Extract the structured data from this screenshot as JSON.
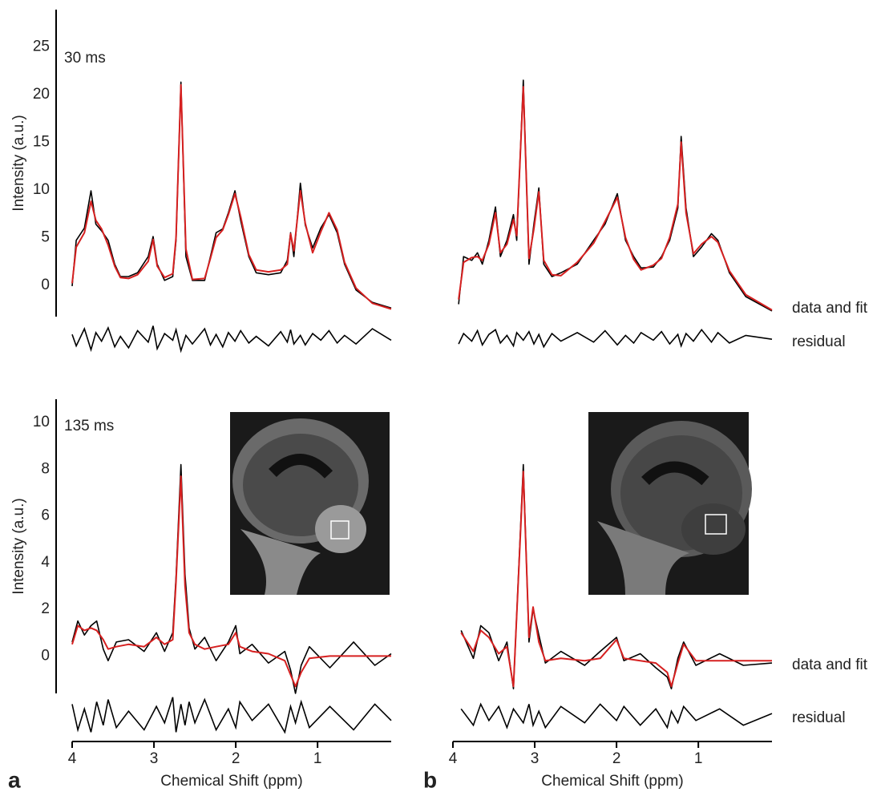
{
  "chart_data": [
    {
      "type": "line",
      "annotation": "30 ms",
      "ylabel": "Intensity (a.u.)",
      "xlim": [
        4,
        0.1
      ],
      "ylim": [
        -3.3,
        28.9
      ],
      "yticks": [
        0,
        5,
        10,
        15,
        20,
        25
      ],
      "x": [
        4.0,
        3.95,
        3.85,
        3.77,
        3.71,
        3.64,
        3.56,
        3.48,
        3.41,
        3.31,
        3.2,
        3.07,
        3.01,
        2.96,
        2.87,
        2.77,
        2.73,
        2.67,
        2.61,
        2.53,
        2.38,
        2.31,
        2.24,
        2.16,
        2.09,
        2.01,
        1.94,
        1.84,
        1.75,
        1.6,
        1.45,
        1.37,
        1.33,
        1.29,
        1.21,
        1.15,
        1.06,
        0.96,
        0.86,
        0.76,
        0.67,
        0.53,
        0.33,
        0.1
      ],
      "series": [
        {
          "color": "#000000",
          "values": [
            -0.1,
            4.7,
            6.0,
            9.9,
            6.4,
            5.7,
            4.7,
            2.2,
            0.9,
            0.9,
            1.3,
            3.0,
            5.1,
            2.2,
            0.5,
            0.9,
            4.7,
            21.3,
            3.0,
            0.5,
            0.5,
            3.0,
            5.5,
            5.9,
            7.6,
            9.9,
            6.8,
            3.0,
            1.3,
            1.1,
            1.3,
            2.6,
            5.5,
            3.0,
            10.7,
            6.3,
            3.9,
            6.0,
            7.4,
            5.5,
            2.2,
            -0.5,
            -1.8,
            -2.4
          ]
        },
        {
          "color": "#d62020",
          "values": [
            0.2,
            4.0,
            5.5,
            8.8,
            6.8,
            5.9,
            4.2,
            2.0,
            0.8,
            0.7,
            1.1,
            2.5,
            4.8,
            2.0,
            0.8,
            1.2,
            5.0,
            21.0,
            3.8,
            0.6,
            0.7,
            2.8,
            5.0,
            5.8,
            7.4,
            9.6,
            7.2,
            3.2,
            1.6,
            1.4,
            1.6,
            2.2,
            5.4,
            3.6,
            9.9,
            6.5,
            3.4,
            5.6,
            7.6,
            5.8,
            2.4,
            -0.3,
            -1.9,
            -2.5
          ]
        }
      ],
      "residual": {
        "color": "#000000",
        "values": [
          0.4,
          -0.8,
          1.0,
          -1.2,
          0.6,
          -0.3,
          1.1,
          -0.9,
          0.2,
          -1.0,
          0.8,
          -0.4,
          1.3,
          -1.1,
          0.5,
          -0.2,
          0.9,
          -1.3,
          0.3,
          -0.6,
          1.0,
          -0.7,
          0.4,
          -0.9,
          0.6,
          -0.3,
          0.8,
          -0.5,
          0.2,
          -0.8,
          0.7,
          -0.4,
          0.9,
          -0.6,
          0.3,
          -0.7,
          0.5,
          -0.2,
          0.8,
          -0.5,
          0.3,
          -0.6,
          1.0,
          -0.2
        ]
      }
    },
    {
      "type": "line",
      "labels": [
        "data and fit",
        "residual"
      ],
      "xlim": [
        4,
        0.1
      ],
      "ylim": [
        -3.3,
        28.9
      ],
      "x": [
        3.93,
        3.87,
        3.77,
        3.7,
        3.64,
        3.56,
        3.48,
        3.42,
        3.34,
        3.26,
        3.22,
        3.14,
        3.07,
        3.01,
        2.95,
        2.89,
        2.79,
        2.68,
        2.48,
        2.28,
        2.14,
        1.99,
        1.89,
        1.79,
        1.7,
        1.55,
        1.45,
        1.35,
        1.25,
        1.21,
        1.15,
        1.06,
        0.96,
        0.84,
        0.76,
        0.62,
        0.42,
        0.1
      ],
      "series": [
        {
          "color": "#000000",
          "values": [
            -2.0,
            3.0,
            2.6,
            3.4,
            2.2,
            4.7,
            8.2,
            3.0,
            4.7,
            7.4,
            4.7,
            21.5,
            2.2,
            6.4,
            10.2,
            2.2,
            0.9,
            1.3,
            2.2,
            4.7,
            6.4,
            9.6,
            4.7,
            3.0,
            1.8,
            1.9,
            3.0,
            4.7,
            8.1,
            15.6,
            8.1,
            3.0,
            4.0,
            5.4,
            4.7,
            1.3,
            -1.2,
            -2.7
          ]
        },
        {
          "color": "#d62020",
          "values": [
            -1.5,
            2.4,
            2.9,
            3.0,
            2.6,
            4.3,
            7.6,
            3.4,
            4.3,
            6.9,
            5.2,
            20.8,
            2.8,
            5.9,
            9.8,
            2.6,
            1.1,
            1.0,
            2.4,
            4.4,
            6.7,
            9.2,
            5.0,
            2.7,
            1.6,
            2.1,
            2.8,
            5.0,
            8.5,
            15.0,
            7.6,
            3.3,
            4.3,
            5.1,
            4.5,
            1.5,
            -1.0,
            -2.6
          ]
        }
      ],
      "residual": {
        "color": "#000000",
        "values": [
          -0.6,
          0.5,
          -0.3,
          0.8,
          -0.7,
          0.4,
          0.9,
          -0.5,
          0.3,
          -0.8,
          0.6,
          -0.2,
          0.7,
          -0.6,
          0.4,
          -0.9,
          0.5,
          -0.3,
          0.6,
          -0.4,
          0.8,
          -0.7,
          0.3,
          -0.5,
          0.6,
          -0.2,
          0.7,
          -0.6,
          0.4,
          -0.8,
          0.5,
          -0.3,
          0.9,
          -0.4,
          0.6,
          -0.5,
          0.3,
          -0.1
        ]
      }
    },
    {
      "type": "line",
      "annotation": "135 ms",
      "ylabel": "Intensity (a.u.)",
      "xlabel": "Chemical Shift (ppm)",
      "panel": "a",
      "xlim": [
        4,
        0.1
      ],
      "xticks": [
        4,
        3,
        2,
        1
      ],
      "ylim": [
        -1.6,
        11.0
      ],
      "yticks": [
        0,
        2,
        4,
        6,
        8,
        10
      ],
      "x": [
        4.0,
        3.93,
        3.85,
        3.77,
        3.7,
        3.62,
        3.56,
        3.46,
        3.31,
        3.12,
        2.97,
        2.87,
        2.77,
        2.73,
        2.67,
        2.62,
        2.57,
        2.5,
        2.38,
        2.24,
        2.09,
        2.0,
        1.95,
        1.8,
        1.6,
        1.4,
        1.33,
        1.27,
        1.2,
        1.1,
        0.85,
        0.56,
        0.3,
        0.1
      ],
      "series": [
        {
          "color": "#000000",
          "values": [
            0.6,
            1.5,
            0.9,
            1.3,
            1.5,
            0.3,
            -0.2,
            0.6,
            0.7,
            0.2,
            1.0,
            0.2,
            1.0,
            3.4,
            8.2,
            3.5,
            1.2,
            0.3,
            0.8,
            -0.2,
            0.6,
            1.3,
            0.1,
            0.5,
            -0.3,
            0.2,
            -0.6,
            -1.6,
            -0.4,
            0.4,
            -0.5,
            0.6,
            -0.4,
            0.1
          ]
        },
        {
          "color": "#d62020",
          "values": [
            0.5,
            1.3,
            1.1,
            1.2,
            1.1,
            0.7,
            0.3,
            0.4,
            0.5,
            0.4,
            0.8,
            0.5,
            0.7,
            3.2,
            7.7,
            3.0,
            1.0,
            0.5,
            0.3,
            0.4,
            0.5,
            1.0,
            0.4,
            0.2,
            0.1,
            -0.2,
            -0.8,
            -1.3,
            -0.7,
            -0.1,
            0.0,
            0.0,
            0.0,
            0.0
          ]
        }
      ],
      "residual": {
        "color": "#000000",
        "values": [
          0.5,
          -0.6,
          0.3,
          -0.7,
          0.6,
          -0.4,
          0.7,
          -0.5,
          0.2,
          -0.6,
          0.4,
          -0.3,
          0.8,
          -0.7,
          0.5,
          -0.4,
          0.6,
          -0.3,
          0.7,
          -0.6,
          0.3,
          -0.5,
          0.6,
          -0.2,
          0.5,
          -0.7,
          0.4,
          -0.3,
          0.6,
          -0.5,
          0.4,
          -0.6,
          0.5,
          -0.2
        ]
      }
    },
    {
      "type": "line",
      "labels": [
        "data and fit",
        "residual"
      ],
      "xlabel": "Chemical Shift (ppm)",
      "panel": "b",
      "xlim": [
        4,
        0.1
      ],
      "xticks": [
        4,
        3,
        2,
        1
      ],
      "ylim": [
        -1.6,
        11.0
      ],
      "x": [
        3.9,
        3.75,
        3.66,
        3.56,
        3.44,
        3.34,
        3.26,
        3.14,
        3.07,
        3.02,
        2.95,
        2.87,
        2.68,
        2.39,
        2.2,
        2.0,
        1.91,
        1.71,
        1.52,
        1.38,
        1.33,
        1.25,
        1.18,
        1.03,
        0.74,
        0.45,
        0.1
      ],
      "series": [
        {
          "color": "#000000",
          "values": [
            1.1,
            -0.1,
            1.3,
            1.0,
            -0.2,
            0.6,
            -1.4,
            8.2,
            0.6,
            2.0,
            0.9,
            -0.3,
            0.2,
            -0.4,
            0.2,
            0.8,
            -0.2,
            0.1,
            -0.5,
            -0.9,
            -1.4,
            -0.1,
            0.6,
            -0.4,
            0.1,
            -0.4,
            -0.3
          ]
        },
        {
          "color": "#d62020",
          "values": [
            1.0,
            0.2,
            1.1,
            0.8,
            0.1,
            0.4,
            -1.3,
            7.9,
            0.8,
            2.1,
            0.6,
            -0.2,
            -0.1,
            -0.2,
            -0.1,
            0.7,
            -0.1,
            -0.2,
            -0.3,
            -0.7,
            -1.3,
            -0.3,
            0.5,
            -0.2,
            -0.2,
            -0.2,
            -0.2
          ]
        }
      ],
      "residual": {
        "color": "#000000",
        "values": [
          0.3,
          -0.4,
          0.5,
          -0.2,
          0.4,
          -0.5,
          0.3,
          -0.3,
          0.5,
          -0.4,
          0.2,
          -0.5,
          0.4,
          -0.3,
          0.5,
          -0.2,
          0.4,
          -0.4,
          0.3,
          -0.5,
          0.2,
          -0.3,
          0.4,
          -0.2,
          0.3,
          -0.4,
          0.1
        ]
      }
    }
  ]
}
